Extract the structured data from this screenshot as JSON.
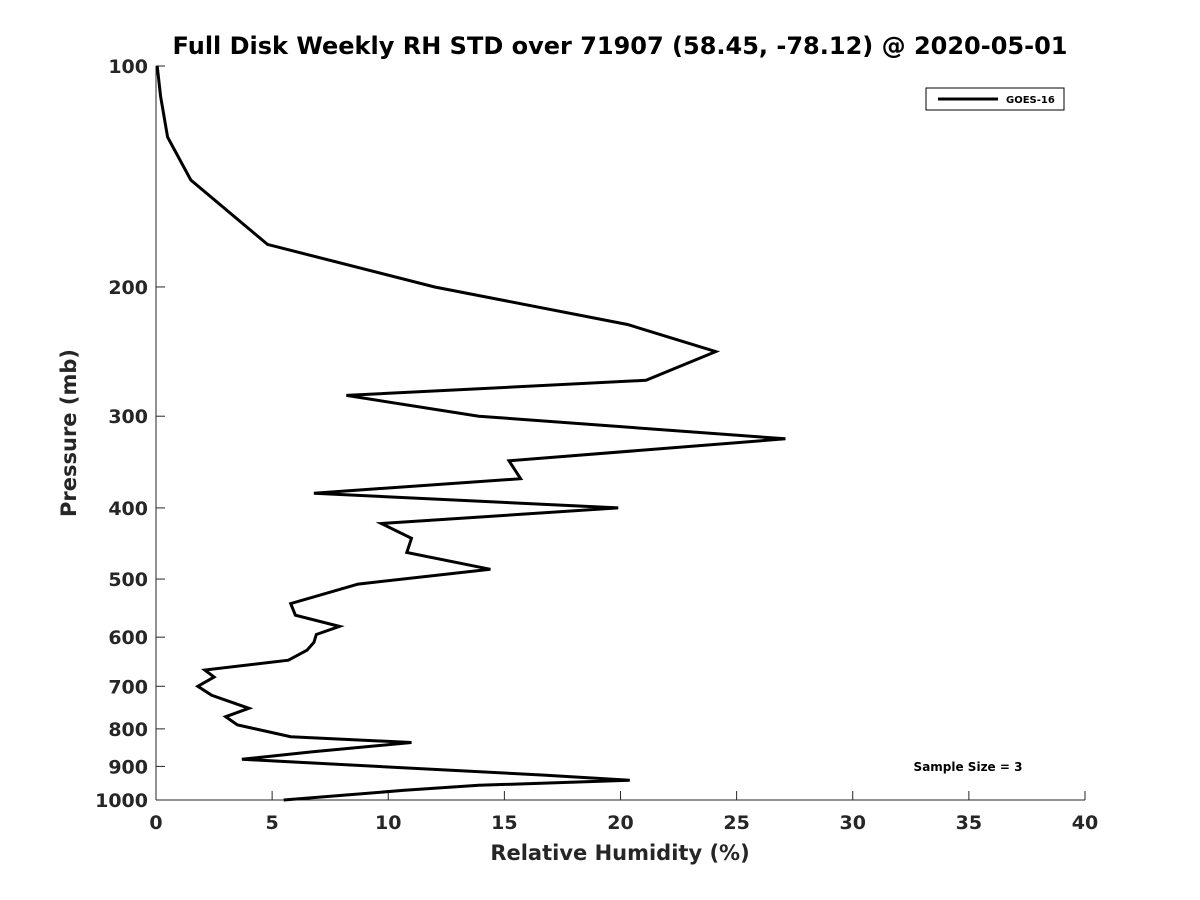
{
  "chart_data": {
    "type": "line",
    "title": "Full Disk Weekly RH STD over 71907 (58.45, -78.12) @ 2020-05-01",
    "xlabel": "Relative Humidity (%)",
    "ylabel": "Pressure (mb)",
    "xlim": [
      0,
      40
    ],
    "ylim": [
      100,
      1000
    ],
    "y_scale": "log",
    "y_reversed": true,
    "x_ticks": [
      "0",
      "5",
      "10",
      "15",
      "20",
      "25",
      "30",
      "35",
      "40"
    ],
    "y_ticks": [
      "100",
      "200",
      "300",
      "400",
      "500",
      "600",
      "700",
      "800",
      "900",
      "1000"
    ],
    "grid": false,
    "legend_position": "top-right",
    "series": [
      {
        "name": "GOES-16",
        "color": "#000000",
        "x": [
          0.05,
          0.2,
          0.5,
          1.5,
          4.8,
          12.0,
          20.3,
          24.1,
          21.1,
          8.2,
          13.9,
          27.1,
          15.2,
          15.7,
          6.8,
          19.9,
          9.7,
          11.0,
          10.8,
          14.4,
          8.7,
          5.8,
          6.0,
          7.9,
          6.9,
          6.8,
          6.5,
          5.7,
          2.1,
          2.5,
          1.8,
          2.4,
          4.0,
          3.0,
          3.5,
          5.8,
          11.0,
          6.7,
          3.7,
          16.7,
          20.4,
          13.9,
          10.7,
          5.5
        ],
        "y": [
          100,
          110,
          125,
          143,
          175,
          200,
          225,
          245,
          268,
          281,
          300,
          322,
          345,
          365,
          382,
          400,
          420,
          440,
          460,
          485,
          508,
          540,
          560,
          580,
          595,
          610,
          625,
          645,
          665,
          680,
          700,
          720,
          750,
          770,
          790,
          820,
          835,
          860,
          880,
          925,
          940,
          955,
          970,
          1000
        ]
      }
    ]
  },
  "annotation": {
    "text": "Sample Size = 3"
  }
}
